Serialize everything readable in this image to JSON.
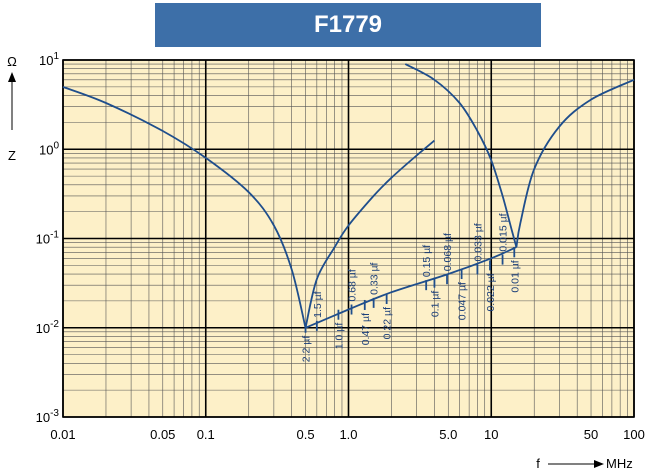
{
  "title": "F1779",
  "colors": {
    "background": "#fdf0c8",
    "curve": "#1f4e8c",
    "banner": "#3d6fa8",
    "grid_major": "#000000",
    "grid_minor": "#555555"
  },
  "chart_data": {
    "type": "line",
    "title": "F1779",
    "xscale": "log",
    "yscale": "log",
    "xlim": [
      0.01,
      100
    ],
    "ylim": [
      0.001,
      10
    ],
    "grid": true,
    "y_axis": {
      "unit": "Ω",
      "label": "Z"
    },
    "x_axis": {
      "label": "f",
      "unit": "MHz"
    },
    "x_ticks": [
      {
        "value": 0.01,
        "label": "0.01"
      },
      {
        "value": 0.05,
        "label": "0.05"
      },
      {
        "value": 0.1,
        "label": "0.1"
      },
      {
        "value": 0.5,
        "label": "0.5"
      },
      {
        "value": 1,
        "label": "1.0"
      },
      {
        "value": 5,
        "label": "5.0"
      },
      {
        "value": 10,
        "label": "10"
      },
      {
        "value": 50,
        "label": "50"
      },
      {
        "value": 100,
        "label": "100"
      }
    ],
    "y_ticks": [
      {
        "value": 10,
        "base": "10",
        "exp": "1"
      },
      {
        "value": 1,
        "base": "10",
        "exp": "0"
      },
      {
        "value": 0.1,
        "base": "10",
        "exp": "-1"
      },
      {
        "value": 0.01,
        "base": "10",
        "exp": "-2"
      },
      {
        "value": 0.001,
        "base": "10",
        "exp": "-3"
      }
    ],
    "series": [
      {
        "points": [
          [
            0.01,
            5.0
          ],
          [
            0.02,
            3.3
          ],
          [
            0.05,
            1.6
          ],
          [
            0.1,
            0.8
          ],
          [
            0.2,
            0.33
          ],
          [
            0.3,
            0.14
          ],
          [
            0.4,
            0.045
          ],
          [
            0.5,
            0.01
          ]
        ]
      },
      {
        "points": [
          [
            0.5,
            0.01
          ],
          [
            0.6,
            0.035
          ],
          [
            0.8,
            0.08
          ],
          [
            1.0,
            0.14
          ],
          [
            1.5,
            0.3
          ],
          [
            2.0,
            0.48
          ],
          [
            3.0,
            0.85
          ],
          [
            4.0,
            1.25
          ]
        ]
      },
      {
        "points": [
          [
            0.5,
            0.01
          ],
          [
            1.0,
            0.016
          ],
          [
            2.0,
            0.025
          ],
          [
            5.0,
            0.04
          ],
          [
            10.0,
            0.06
          ],
          [
            15.0,
            0.08
          ]
        ]
      },
      {
        "points": [
          [
            2.5,
            9.0
          ],
          [
            4.0,
            6.0
          ],
          [
            6.0,
            3.3
          ],
          [
            8.0,
            1.6
          ],
          [
            10.0,
            0.75
          ],
          [
            12.0,
            0.3
          ],
          [
            14.0,
            0.12
          ],
          [
            15.0,
            0.08
          ]
        ]
      },
      {
        "points": [
          [
            15.0,
            0.08
          ],
          [
            16.0,
            0.15
          ],
          [
            20.0,
            0.6
          ],
          [
            30.0,
            1.8
          ],
          [
            50.0,
            3.6
          ],
          [
            100.0,
            6.0
          ]
        ]
      }
    ],
    "annotations": [
      {
        "text": "2.2 µf",
        "x": 0.5,
        "y": 0.01
      },
      {
        "text": "1.5 µf",
        "x": 0.6,
        "y": 0.0105
      },
      {
        "text": "1.0 µf",
        "x": 0.85,
        "y": 0.014
      },
      {
        "text": "0.68 µf",
        "x": 1.05,
        "y": 0.016
      },
      {
        "text": "0.47 µf",
        "x": 1.3,
        "y": 0.018
      },
      {
        "text": "0.33 µf",
        "x": 1.5,
        "y": 0.019
      },
      {
        "text": "0.22 µf",
        "x": 1.85,
        "y": 0.021
      },
      {
        "text": "0.15 µf",
        "x": 3.5,
        "y": 0.03
      },
      {
        "text": "0.1 µf",
        "x": 4.0,
        "y": 0.032
      },
      {
        "text": "0.068 µf",
        "x": 4.9,
        "y": 0.035
      },
      {
        "text": "0.047 µf",
        "x": 6.2,
        "y": 0.04
      },
      {
        "text": "0.033 µf",
        "x": 8.0,
        "y": 0.045
      },
      {
        "text": "0.022 µf",
        "x": 9.8,
        "y": 0.05
      },
      {
        "text": "0.015 µf",
        "x": 12.0,
        "y": 0.058
      },
      {
        "text": "0.01 µf",
        "x": 14.5,
        "y": 0.07
      }
    ]
  }
}
